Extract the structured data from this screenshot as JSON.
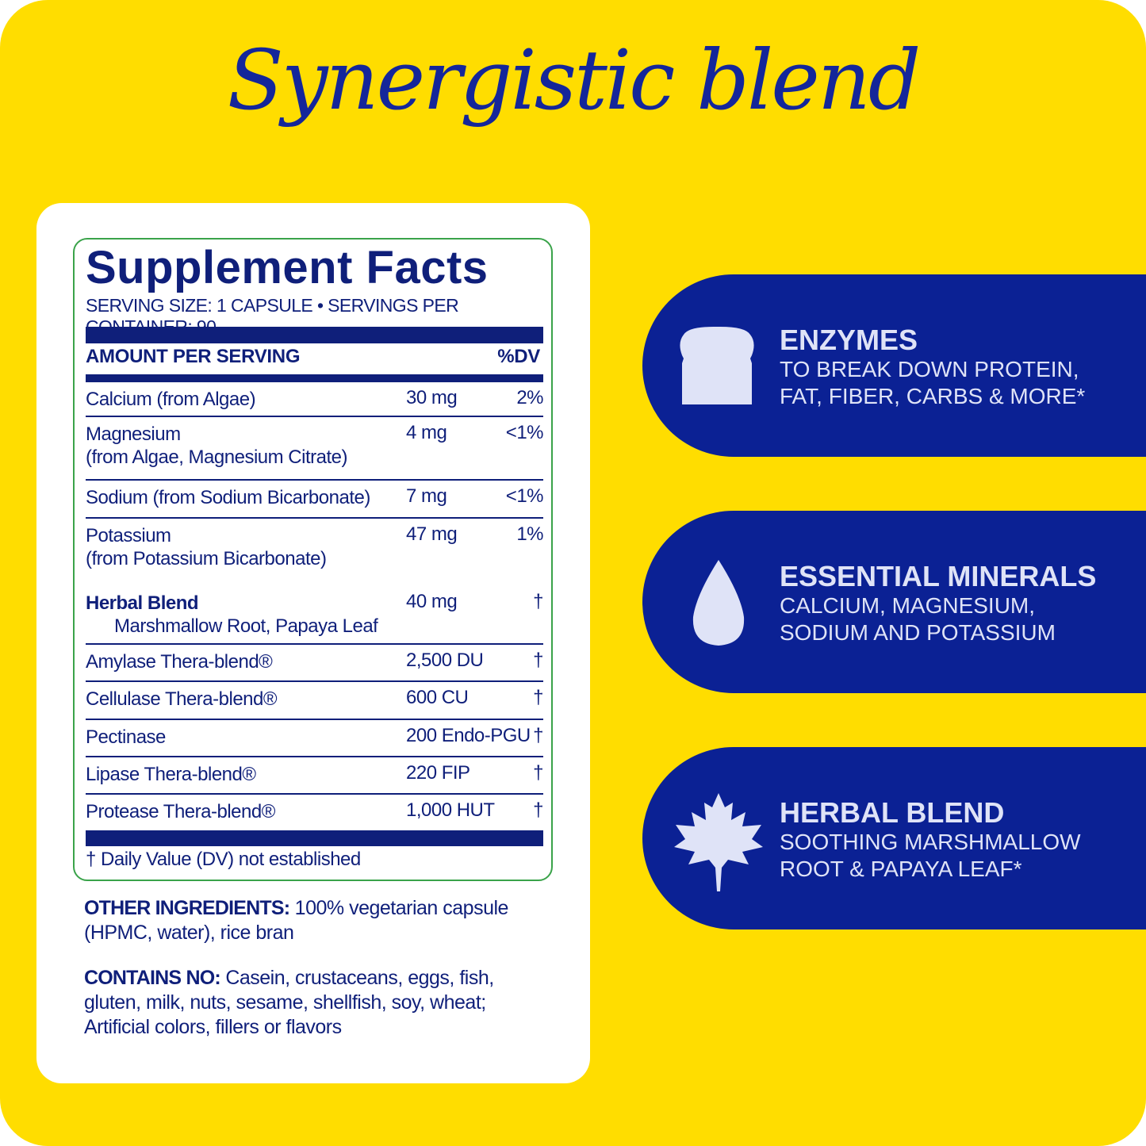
{
  "headline": "Synergistic blend",
  "facts": {
    "title": "Supplement Facts",
    "serving": "SERVING SIZE: 1 CAPSULE • SERVINGS PER CONTAINER: 90",
    "amount_header": "AMOUNT PER SERVING",
    "dv_header": "%DV",
    "rows": [
      {
        "name": "Calcium (from Algae)",
        "amount": "30 mg",
        "dv": "2%"
      },
      {
        "name": "Magnesium",
        "sub": "(from Algae, Magnesium Citrate)",
        "amount": "4 mg",
        "dv": "<1%"
      },
      {
        "name": "Sodium (from Sodium Bicarbonate)",
        "amount": "7 mg",
        "dv": "<1%"
      },
      {
        "name": "Potassium",
        "sub": "(from Potassium Bicarbonate)",
        "amount": "47 mg",
        "dv": "1%"
      },
      {
        "name": "Herbal Blend",
        "sub": "Marshmallow Root, Papaya Leaf",
        "amount": "40 mg",
        "dv": "†",
        "bold": true
      },
      {
        "name": "Amylase Thera-blend®",
        "amount": "2,500 DU",
        "dv": "†"
      },
      {
        "name": "Cellulase Thera-blend®",
        "amount": "600 CU",
        "dv": "†"
      },
      {
        "name": "Pectinase",
        "amount": "200 Endo-PGU",
        "dv": "†"
      },
      {
        "name": "Lipase Thera-blend®",
        "amount": "220 FIP",
        "dv": "†"
      },
      {
        "name": "Protease Thera-blend®",
        "amount": "1,000 HUT",
        "dv": "†"
      }
    ],
    "footnote": "† Daily Value (DV) not established"
  },
  "other_ingredients": {
    "label": "OTHER INGREDIENTS:",
    "line1": " 100% vegetarian capsule",
    "line2": "(HPMC, water), rice bran"
  },
  "contains_no": {
    "label": "CONTAINS NO:",
    "line1": " Casein, crustaceans, eggs, fish,",
    "line2": "gluten, milk, nuts, sesame, shellfish, soy, wheat;",
    "line3": "Artificial colors, fillers or flavors"
  },
  "features": [
    {
      "icon": "bread-icon",
      "title": "ENZYMES",
      "line1": "TO BREAK DOWN PROTEIN,",
      "line2": "FAT, FIBER, CARBS & MORE*"
    },
    {
      "icon": "water-drop-icon",
      "title": "ESSENTIAL MINERALS",
      "line1": "CALCIUM, MAGNESIUM,",
      "line2": "SODIUM AND POTASSIUM"
    },
    {
      "icon": "leaf-icon",
      "title": "HERBAL BLEND",
      "line1": "SOOTHING MARSHMALLOW",
      "line2": "ROOT & PAPAYA LEAF*"
    }
  ],
  "colors": {
    "background": "#FFDD00",
    "navy": "#0b2194",
    "label_text": "#0f1f7a",
    "border": "#3aa34a"
  }
}
